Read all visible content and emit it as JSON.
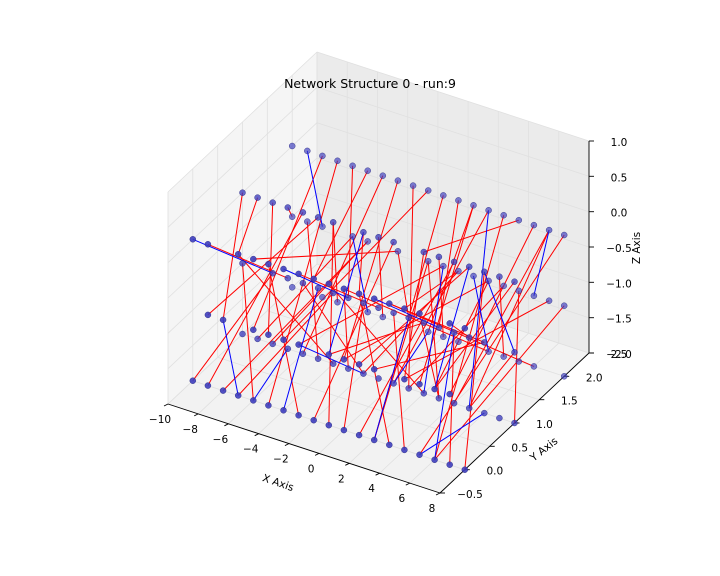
{
  "chart_data": {
    "type": "scatter-3d-network",
    "title": "Network Structure 0 - run:9",
    "xlabel": "X Axis",
    "ylabel": "Y Axis",
    "zlabel": "Z Axis",
    "xlim": [
      -10,
      8
    ],
    "ylim": [
      -0.5,
      2.5
    ],
    "zlim": [
      -2.0,
      1.0
    ],
    "xticks": [
      "−10",
      "−8",
      "−6",
      "−4",
      "−2",
      "0",
      "2",
      "4",
      "6",
      "8"
    ],
    "yticks": [
      "−0.5",
      "0.0",
      "0.5",
      "1.0",
      "1.5",
      "2.0",
      "2.5"
    ],
    "zticks": [
      "−2.0",
      "−1.5",
      "−1.0",
      "−0.5",
      "0.0",
      "0.5",
      "1.0"
    ],
    "grid": true,
    "legend": "none",
    "node_grid": {
      "x": [
        -10,
        -9,
        -8,
        -7,
        -6,
        -5,
        -4,
        -3,
        -2,
        -1,
        0,
        1,
        2,
        3,
        4,
        5,
        6,
        7,
        8
      ],
      "y": [
        0,
        1,
        2
      ],
      "z": [
        -2,
        -1,
        0
      ]
    },
    "edge_colors": {
      "red": "#ff0000",
      "blue": "#0000ff"
    },
    "node_color": "#3b3bbd",
    "red_edges": [
      [
        [
          -9,
          1,
          0
        ],
        [
          -7,
          0,
          0
        ]
      ],
      [
        [
          -8,
          2,
          0
        ],
        [
          -6,
          0,
          -1
        ]
      ],
      [
        [
          -7,
          2,
          0
        ],
        [
          -5,
          0,
          -2
        ]
      ],
      [
        [
          -6,
          2,
          0
        ],
        [
          -3,
          1,
          -1
        ]
      ],
      [
        [
          -5,
          2,
          0
        ],
        [
          -2,
          0,
          0
        ]
      ],
      [
        [
          -4,
          2,
          0
        ],
        [
          -6,
          1,
          -2
        ]
      ],
      [
        [
          -3,
          2,
          0
        ],
        [
          0,
          0,
          -1
        ]
      ],
      [
        [
          -2,
          2,
          0
        ],
        [
          1,
          1,
          -2
        ]
      ],
      [
        [
          -1,
          2,
          0
        ],
        [
          -4,
          0,
          -1
        ]
      ],
      [
        [
          0,
          2,
          0
        ],
        [
          2,
          0,
          -2
        ]
      ],
      [
        [
          1,
          2,
          0
        ],
        [
          3,
          1,
          -1
        ]
      ],
      [
        [
          2,
          2,
          0
        ],
        [
          5,
          0,
          -1
        ]
      ],
      [
        [
          3,
          2,
          0
        ],
        [
          0,
          1,
          -2
        ]
      ],
      [
        [
          4,
          2,
          0
        ],
        [
          6,
          0,
          -2
        ]
      ],
      [
        [
          5,
          2,
          0
        ],
        [
          2,
          1,
          0
        ]
      ],
      [
        [
          6,
          2,
          0
        ],
        [
          7,
          0,
          -1
        ]
      ],
      [
        [
          7,
          2,
          0
        ],
        [
          4,
          1,
          -2
        ]
      ],
      [
        [
          8,
          2,
          0
        ],
        [
          5,
          0,
          -2
        ]
      ],
      [
        [
          -10,
          1,
          0
        ],
        [
          -8,
          0,
          -1
        ]
      ],
      [
        [
          -8,
          1,
          0
        ],
        [
          -5,
          0,
          -1
        ]
      ],
      [
        [
          -6,
          1,
          0
        ],
        [
          -9,
          0,
          -2
        ]
      ],
      [
        [
          -4,
          1,
          0
        ],
        [
          -1,
          0,
          -2
        ]
      ],
      [
        [
          -2,
          1,
          0
        ],
        [
          1,
          0,
          0
        ]
      ],
      [
        [
          0,
          1,
          0
        ],
        [
          -2,
          0,
          -2
        ]
      ],
      [
        [
          2,
          1,
          0
        ],
        [
          4,
          0,
          -1
        ]
      ],
      [
        [
          4,
          1,
          0
        ],
        [
          1,
          0,
          -2
        ]
      ],
      [
        [
          6,
          1,
          0
        ],
        [
          8,
          0,
          -2
        ]
      ],
      [
        [
          8,
          1,
          0
        ],
        [
          6,
          0,
          -1
        ]
      ],
      [
        [
          -9,
          0,
          0
        ],
        [
          -7,
          1,
          -1
        ]
      ],
      [
        [
          -7,
          0,
          0
        ],
        [
          -4,
          1,
          -2
        ]
      ],
      [
        [
          -5,
          0,
          0
        ],
        [
          -3,
          0,
          -2
        ]
      ],
      [
        [
          -3,
          0,
          0
        ],
        [
          -1,
          1,
          -1
        ]
      ],
      [
        [
          -1,
          0,
          0
        ],
        [
          2,
          1,
          -2
        ]
      ],
      [
        [
          1,
          0,
          0
        ],
        [
          3,
          0,
          -2
        ]
      ],
      [
        [
          3,
          0,
          0
        ],
        [
          6,
          1,
          -1
        ]
      ],
      [
        [
          5,
          0,
          0
        ],
        [
          3,
          1,
          -2
        ]
      ],
      [
        [
          7,
          0,
          0
        ],
        [
          5,
          1,
          -1
        ]
      ],
      [
        [
          -10,
          1,
          -1
        ],
        [
          -6,
          0,
          -2
        ]
      ],
      [
        [
          -8,
          1,
          -1
        ],
        [
          -10,
          0,
          -2
        ]
      ],
      [
        [
          -6,
          1,
          -1
        ],
        [
          -2,
          1,
          -2
        ]
      ],
      [
        [
          -4,
          1,
          -1
        ],
        [
          -7,
          0,
          -2
        ]
      ],
      [
        [
          -2,
          1,
          -1
        ],
        [
          0,
          0,
          -2
        ]
      ],
      [
        [
          0,
          1,
          -1
        ],
        [
          4,
          0,
          -2
        ]
      ],
      [
        [
          2,
          1,
          -1
        ],
        [
          -1,
          0,
          -1
        ]
      ],
      [
        [
          4,
          1,
          -1
        ],
        [
          7,
          0,
          -2
        ]
      ],
      [
        [
          6,
          1,
          -1
        ],
        [
          2,
          0,
          -1
        ]
      ],
      [
        [
          8,
          1,
          -1
        ],
        [
          5,
          1,
          -2
        ]
      ],
      [
        [
          -9,
          2,
          -1
        ],
        [
          -5,
          1,
          -2
        ]
      ],
      [
        [
          -5,
          2,
          -1
        ],
        [
          -8,
          1,
          -2
        ]
      ],
      [
        [
          -1,
          2,
          -1
        ],
        [
          3,
          1,
          -2
        ]
      ],
      [
        [
          3,
          2,
          -1
        ],
        [
          0,
          0,
          -1
        ]
      ],
      [
        [
          7,
          2,
          -1
        ],
        [
          4,
          0,
          -1
        ]
      ],
      [
        [
          -3,
          2,
          -1
        ],
        [
          1,
          1,
          -1
        ]
      ],
      [
        [
          1,
          2,
          -1
        ],
        [
          -2,
          1,
          -2
        ]
      ],
      [
        [
          5,
          2,
          -1
        ],
        [
          8,
          1,
          -2
        ]
      ],
      [
        [
          -9,
          0,
          -1
        ],
        [
          -5,
          1,
          0
        ]
      ],
      [
        [
          -3,
          0,
          -1
        ],
        [
          0,
          2,
          -1
        ]
      ],
      [
        [
          1,
          0,
          -1
        ],
        [
          5,
          1,
          0
        ]
      ],
      [
        [
          6,
          0,
          -1
        ],
        [
          3,
          2,
          -1
        ]
      ],
      [
        [
          -7,
          2,
          -2
        ],
        [
          -4,
          1,
          0
        ]
      ],
      [
        [
          -1,
          2,
          -2
        ],
        [
          2,
          2,
          0
        ]
      ],
      [
        [
          4,
          2,
          -2
        ],
        [
          7,
          1,
          0
        ]
      ],
      [
        [
          -8,
          0,
          -2
        ],
        [
          -5,
          2,
          -1
        ]
      ],
      [
        [
          2,
          0,
          -2
        ],
        [
          -1,
          2,
          -1
        ]
      ],
      [
        [
          6,
          0,
          -2
        ],
        [
          8,
          2,
          -1
        ]
      ],
      [
        [
          -4,
          2,
          -2
        ],
        [
          -1,
          1,
          0
        ]
      ],
      [
        [
          0,
          2,
          -2
        ],
        [
          3,
          1,
          0
        ]
      ],
      [
        [
          6,
          2,
          -2
        ],
        [
          3,
          0,
          0
        ]
      ],
      [
        [
          -9,
          1,
          -2
        ],
        [
          -6,
          2,
          -1
        ]
      ],
      [
        [
          -3,
          1,
          -2
        ],
        [
          0,
          0,
          0
        ]
      ],
      [
        [
          5,
          1,
          -2
        ],
        [
          7,
          2,
          0
        ]
      ],
      [
        [
          1,
          1,
          -2
        ],
        [
          4,
          2,
          -1
        ]
      ],
      [
        [
          -10,
          2,
          -1
        ],
        [
          -7,
          1,
          0
        ]
      ],
      [
        [
          -6,
          0,
          0
        ],
        [
          -3,
          2,
          -1
        ]
      ],
      [
        [
          0,
          0,
          0
        ],
        [
          3,
          2,
          -2
        ]
      ],
      [
        [
          4,
          0,
          0
        ],
        [
          1,
          2,
          -1
        ]
      ]
    ],
    "blue_edges": [
      [
        [
          -9,
          2,
          0
        ],
        [
          -8,
          2,
          -1
        ]
      ],
      [
        [
          -10,
          0,
          0
        ],
        [
          -8,
          1,
          -1
        ]
      ],
      [
        [
          -8,
          0,
          -1
        ],
        [
          -7,
          0,
          -2
        ]
      ],
      [
        [
          -5,
          1,
          -1
        ],
        [
          -4,
          0,
          -2
        ]
      ],
      [
        [
          -2,
          1,
          0
        ],
        [
          -1,
          0,
          -1
        ]
      ],
      [
        [
          0,
          2,
          -1
        ],
        [
          2,
          1,
          -2
        ]
      ],
      [
        [
          2,
          0,
          0
        ],
        [
          3,
          1,
          -1
        ]
      ],
      [
        [
          3,
          2,
          0
        ],
        [
          5,
          1,
          -2
        ]
      ],
      [
        [
          5,
          1,
          0
        ],
        [
          6,
          0,
          -1
        ]
      ],
      [
        [
          6,
          1,
          0
        ],
        [
          8,
          1,
          -1
        ]
      ],
      [
        [
          7,
          2,
          0
        ],
        [
          6,
          2,
          -1
        ]
      ],
      [
        [
          4,
          1,
          -1
        ],
        [
          6,
          0,
          -2
        ]
      ],
      [
        [
          -7,
          1,
          -2
        ],
        [
          -6,
          0,
          -2
        ]
      ],
      [
        [
          -3,
          0,
          -1
        ],
        [
          -2,
          1,
          -2
        ]
      ],
      [
        [
          1,
          1,
          -1
        ],
        [
          2,
          0,
          -2
        ]
      ],
      [
        [
          5,
          0,
          -2
        ],
        [
          6,
          1,
          -2
        ]
      ],
      [
        [
          -1,
          2,
          -2
        ],
        [
          0,
          1,
          -2
        ]
      ],
      [
        [
          -6,
          2,
          -1
        ],
        [
          -5,
          2,
          -2
        ]
      ],
      [
        [
          2,
          2,
          -1
        ],
        [
          3,
          2,
          -2
        ]
      ],
      [
        [
          -4,
          0,
          0
        ],
        [
          -3,
          1,
          -1
        ]
      ]
    ],
    "extra_nodes": [
      [
        -10,
        2,
        0
      ],
      [
        -10,
        2,
        -2
      ],
      [
        -10,
        0,
        -2
      ],
      [
        -9,
        0,
        -2
      ],
      [
        8,
        0,
        0
      ],
      [
        8,
        1,
        0
      ],
      [
        8,
        2,
        -2
      ],
      [
        -2,
        0,
        -2
      ],
      [
        0,
        0,
        -2
      ],
      [
        7,
        1,
        -2
      ],
      [
        -10,
        1,
        -2
      ],
      [
        -8,
        2,
        -2
      ],
      [
        4,
        1,
        0
      ],
      [
        -1,
        1,
        -2
      ],
      [
        5,
        2,
        -2
      ],
      [
        -4,
        0,
        -1
      ],
      [
        1,
        2,
        -2
      ]
    ]
  }
}
